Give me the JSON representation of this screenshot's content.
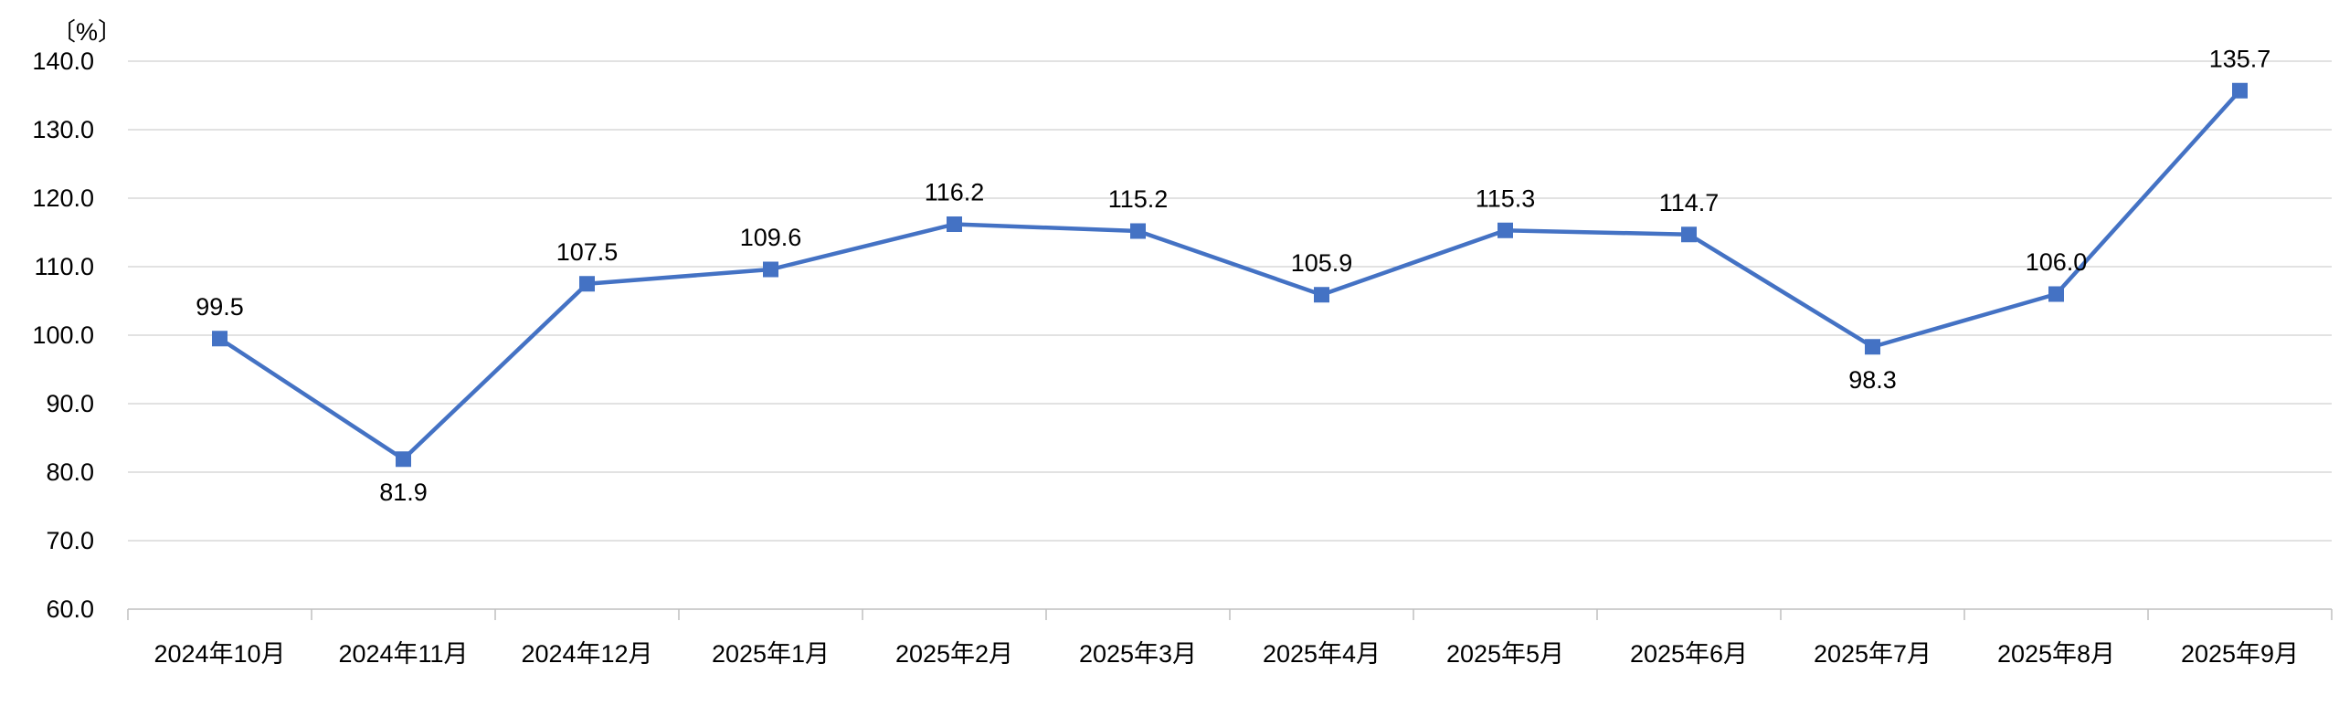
{
  "chart_data": {
    "type": "line",
    "title": "",
    "unit_label": "〔%〕",
    "xlabel": "",
    "ylabel": "",
    "categories": [
      "2024年10月",
      "2024年11月",
      "2024年12月",
      "2025年1月",
      "2025年2月",
      "2025年3月",
      "2025年4月",
      "2025年5月",
      "2025年6月",
      "2025年7月",
      "2025年8月",
      "2025年9月"
    ],
    "series": [
      {
        "name": "",
        "values": [
          99.5,
          81.9,
          107.5,
          109.6,
          116.2,
          115.2,
          105.9,
          115.3,
          114.7,
          98.3,
          106.0,
          135.7
        ],
        "value_labels": [
          "99.5",
          "81.9",
          "107.5",
          "109.6",
          "116.2",
          "115.2",
          "105.9",
          "115.3",
          "114.7",
          "98.3",
          "106.0",
          "135.7"
        ],
        "label_below_indices": [
          1,
          9
        ],
        "marker": "square"
      }
    ],
    "ylim": [
      60.0,
      140.0
    ],
    "ytick_step": 10,
    "ytick_labels": [
      "140.0",
      "130.0",
      "120.0",
      "110.0",
      "100.0",
      "90.0",
      "80.0",
      "70.0",
      "60.0"
    ],
    "grid": true,
    "legend_position": "none",
    "colors": {
      "line": "#4472C4",
      "marker": "#4472C4",
      "gridline": "#D9D9D9",
      "axis": "#BFBFBF",
      "tick_text": "#000000",
      "data_label_text": "#000000",
      "background": "#FFFFFF"
    }
  }
}
